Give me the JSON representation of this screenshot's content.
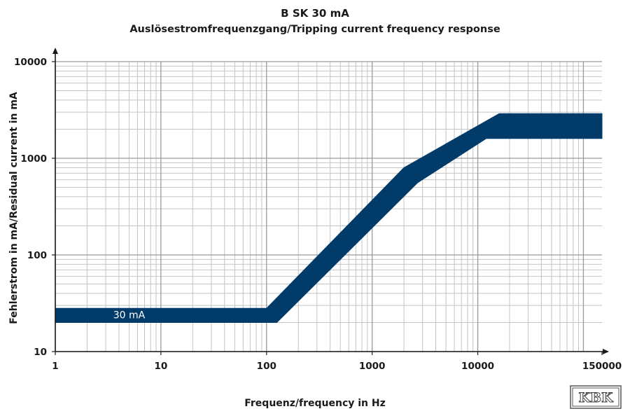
{
  "chart_data": {
    "type": "area",
    "title": "B SK 30 mA",
    "subtitle": "Auslösestromfrequenzgang/Tripping current frequency response",
    "xlabel": "Frequenz/frequency in Hz",
    "ylabel": "Fehlerstrom in mA/Residual current in mA",
    "xscale": "log",
    "yscale": "log",
    "xlim": [
      1,
      150000
    ],
    "ylim": [
      10,
      10000
    ],
    "x_ticks": [
      1,
      10,
      100,
      1000,
      10000,
      150000
    ],
    "x_tick_labels": [
      "1",
      "10",
      "100",
      "1000",
      "10000",
      "150000"
    ],
    "y_ticks": [
      10,
      100,
      1000,
      10000
    ],
    "y_tick_labels": [
      "10",
      "100",
      "1000",
      "10000"
    ],
    "grid": true,
    "band": {
      "color": "#003b6a",
      "upper": [
        {
          "x": 1,
          "y": 28
        },
        {
          "x": 100,
          "y": 28
        },
        {
          "x": 2000,
          "y": 800
        },
        {
          "x": 16000,
          "y": 2900
        },
        {
          "x": 150000,
          "y": 2900
        }
      ],
      "lower": [
        {
          "x": 1,
          "y": 20
        },
        {
          "x": 125,
          "y": 20
        },
        {
          "x": 2700,
          "y": 560
        },
        {
          "x": 12000,
          "y": 1600
        },
        {
          "x": 150000,
          "y": 1600
        }
      ]
    },
    "annotations": [
      {
        "text": "30 mA",
        "x": 5,
        "y": 24
      }
    ]
  },
  "logo": {
    "text": "KBK"
  }
}
